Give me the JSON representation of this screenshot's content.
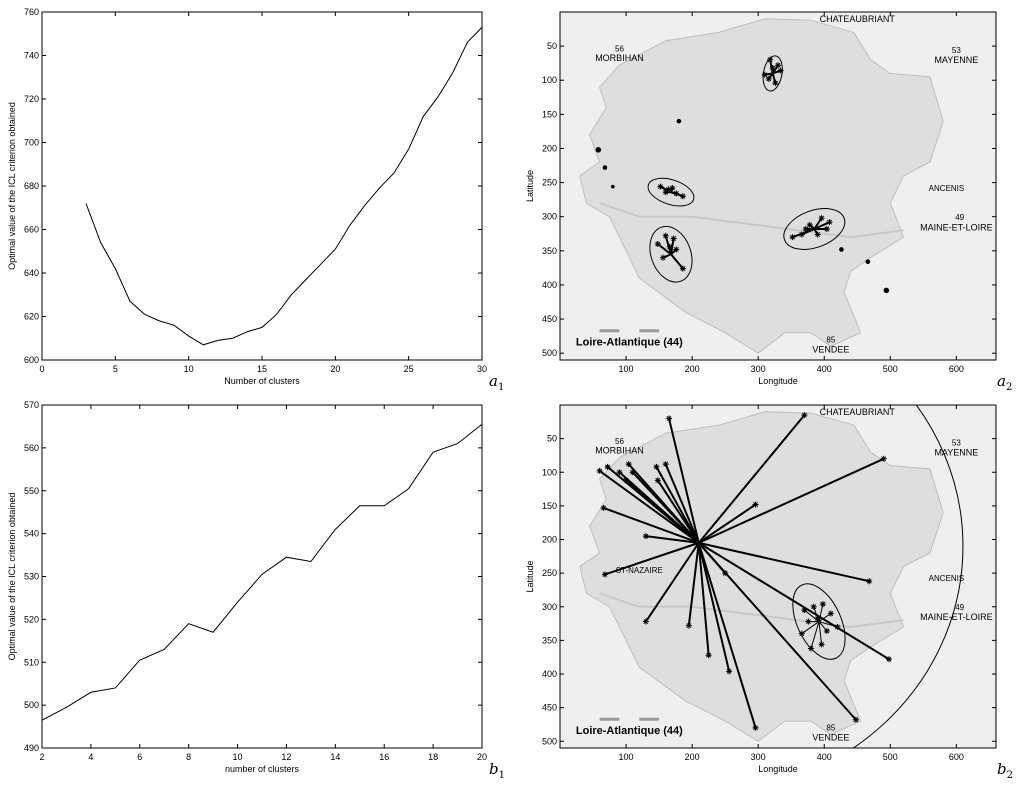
{
  "chart_data": [
    {
      "id": "a1",
      "type": "line",
      "corner_label": "a",
      "corner_sub": "1",
      "xlabel": "Number of clusters",
      "ylabel": "Optimal value of the ICL criterion obtained",
      "xlim": [
        0,
        30
      ],
      "ylim": [
        600,
        760
      ],
      "xticks": [
        0,
        5,
        10,
        15,
        20,
        25,
        30
      ],
      "yticks": [
        600,
        620,
        640,
        660,
        680,
        700,
        720,
        740,
        760
      ],
      "x": [
        3,
        4,
        5,
        6,
        7,
        8,
        9,
        10,
        11,
        12,
        13,
        14,
        15,
        16,
        17,
        18,
        19,
        20,
        21,
        22,
        23,
        24,
        25,
        26,
        27,
        28,
        29,
        30
      ],
      "y": [
        672,
        654,
        642,
        627,
        621,
        618,
        616,
        611,
        607,
        609,
        610,
        613,
        615,
        621,
        630,
        637,
        644,
        651,
        662,
        671,
        679,
        686,
        697,
        712,
        721,
        732,
        746,
        753
      ]
    },
    {
      "id": "a2",
      "type": "scatter",
      "corner_label": "a",
      "corner_sub": "2",
      "xlabel": "Longitude",
      "ylabel": "Latitude",
      "xlim": [
        0,
        660
      ],
      "ylim": [
        510,
        0
      ],
      "xticks": [
        100,
        200,
        300,
        400,
        500,
        600
      ],
      "yticks": [
        50,
        100,
        150,
        200,
        250,
        300,
        350,
        400,
        450,
        500
      ],
      "map_labels": {
        "region": "Loire-Atlantique (44)",
        "chateaubriant": "CHATEAUBRIANT",
        "morbihan": "MORBIHAN",
        "mayenne": "MAYENNE",
        "maine": "MAINE-ET-LOIRE",
        "vendee": "VENDEE",
        "ancenis": "ANCENIS",
        "n56": "56",
        "n53": "53",
        "n49": "49",
        "n85": "85"
      },
      "clusters": [
        {
          "center": [
            322,
            90
          ],
          "rx": 14,
          "ry": 26,
          "angle": 10,
          "points": [
            [
              318,
              70
            ],
            [
              330,
              78
            ],
            [
              310,
              92
            ],
            [
              326,
              104
            ],
            [
              316,
              98
            ],
            [
              334,
              86
            ],
            [
              322,
              82
            ]
          ]
        },
        {
          "center": [
            168,
            264
          ],
          "rx": 36,
          "ry": 18,
          "angle": 18,
          "points": [
            [
              152,
              256
            ],
            [
              164,
              260
            ],
            [
              176,
              266
            ],
            [
              186,
              270
            ],
            [
              160,
              264
            ],
            [
              170,
              258
            ]
          ]
        },
        {
          "center": [
            385,
            318
          ],
          "rx": 48,
          "ry": 27,
          "angle": -20,
          "points": [
            [
              352,
              330
            ],
            [
              366,
              326
            ],
            [
              378,
              312
            ],
            [
              396,
              302
            ],
            [
              404,
              318
            ],
            [
              390,
              326
            ],
            [
              372,
              318
            ],
            [
              408,
              308
            ]
          ]
        },
        {
          "center": [
            168,
            355
          ],
          "rx": 30,
          "ry": 42,
          "angle": -20,
          "points": [
            [
              148,
              340
            ],
            [
              160,
              328
            ],
            [
              176,
              348
            ],
            [
              186,
              376
            ],
            [
              156,
              360
            ],
            [
              166,
              344
            ],
            [
              172,
              332
            ]
          ]
        },
        {
          "center": [
            58,
            202
          ],
          "rx": 6,
          "ry": 6,
          "angle": 0,
          "points": [
            [
              58,
              202
            ]
          ]
        },
        {
          "center": [
            68,
            228
          ],
          "rx": 5,
          "ry": 5,
          "angle": 0,
          "points": [
            [
              68,
              228
            ]
          ]
        },
        {
          "center": [
            80,
            256
          ],
          "rx": 4,
          "ry": 4,
          "angle": 0,
          "points": [
            [
              80,
              256
            ]
          ]
        },
        {
          "center": [
            180,
            160
          ],
          "rx": 5,
          "ry": 5,
          "angle": 0,
          "points": [
            [
              180,
              160
            ]
          ]
        },
        {
          "center": [
            426,
            348
          ],
          "rx": 5,
          "ry": 5,
          "angle": 0,
          "points": [
            [
              426,
              348
            ]
          ]
        },
        {
          "center": [
            466,
            366
          ],
          "rx": 5,
          "ry": 5,
          "angle": 0,
          "points": [
            [
              466,
              366
            ]
          ]
        },
        {
          "center": [
            494,
            408
          ],
          "rx": 6,
          "ry": 6,
          "angle": 0,
          "points": [
            [
              494,
              408
            ]
          ]
        }
      ]
    },
    {
      "id": "b1",
      "type": "line",
      "corner_label": "b",
      "corner_sub": "1",
      "xlabel": "number of clusters",
      "ylabel": "Optimal value of the ICL criterion obtained",
      "xlim": [
        2,
        20
      ],
      "ylim": [
        490,
        570
      ],
      "xticks": [
        2,
        4,
        6,
        8,
        10,
        12,
        14,
        16,
        18,
        20
      ],
      "yticks": [
        490,
        500,
        510,
        520,
        530,
        540,
        550,
        560,
        570
      ],
      "x": [
        2,
        3,
        4,
        5,
        6,
        7,
        8,
        9,
        10,
        11,
        12,
        13,
        14,
        15,
        16,
        17,
        18,
        19,
        20
      ],
      "y": [
        496.5,
        499.5,
        503,
        504,
        510.5,
        513,
        519,
        517,
        524,
        530.5,
        534.5,
        533.5,
        541,
        546.5,
        546.5,
        550.5,
        559,
        561,
        565.5
      ]
    },
    {
      "id": "b2",
      "type": "scatter",
      "corner_label": "b",
      "corner_sub": "2",
      "xlabel": "Longitude",
      "ylabel": "Latitude",
      "xlim": [
        0,
        660
      ],
      "ylim": [
        510,
        0
      ],
      "xticks": [
        100,
        200,
        300,
        400,
        500,
        600
      ],
      "yticks": [
        50,
        100,
        150,
        200,
        250,
        300,
        350,
        400,
        450,
        500
      ],
      "map_labels": {
        "region": "Loire-Atlantique (44)",
        "chateaubriant": "CHATEAUBRIANT",
        "morbihan": "MORBIHAN",
        "mayenne": "MAYENNE",
        "maine": "MAINE-ET-LOIRE",
        "vendee": "VENDEE",
        "ancenis": "ANCENIS",
        "stnazaire": "ST-NAZAIRE",
        "n56": "56",
        "n53": "53",
        "n49": "49",
        "n85": "85"
      },
      "big_cluster": {
        "center": [
          210,
          205
        ],
        "points": [
          [
            165,
            20
          ],
          [
            370,
            15
          ],
          [
            60,
            98
          ],
          [
            72,
            92
          ],
          [
            104,
            88
          ],
          [
            110,
            100
          ],
          [
            100,
            112
          ],
          [
            146,
            92
          ],
          [
            148,
            112
          ],
          [
            90,
            100
          ],
          [
            490,
            80
          ],
          [
            296,
            148
          ],
          [
            66,
            153
          ],
          [
            130,
            195
          ],
          [
            68,
            252
          ],
          [
            250,
            250
          ],
          [
            468,
            262
          ],
          [
            130,
            322
          ],
          [
            195,
            328
          ],
          [
            225,
            372
          ],
          [
            256,
            396
          ],
          [
            296,
            480
          ],
          [
            448,
            468
          ],
          [
            498,
            378
          ],
          [
            160,
            88
          ]
        ]
      },
      "small_cluster": {
        "center": [
          392,
          322
        ],
        "rx": 33,
        "ry": 60,
        "angle": -25,
        "points": [
          [
            370,
            305
          ],
          [
            384,
            300
          ],
          [
            398,
            296
          ],
          [
            410,
            310
          ],
          [
            404,
            336
          ],
          [
            396,
            356
          ],
          [
            380,
            362
          ],
          [
            366,
            340
          ],
          [
            376,
            322
          ],
          [
            420,
            330
          ],
          [
            390,
            318
          ]
        ]
      },
      "big_ellipse": {
        "center": [
          210,
          210
        ],
        "rx": 400,
        "ry": 370
      }
    }
  ]
}
